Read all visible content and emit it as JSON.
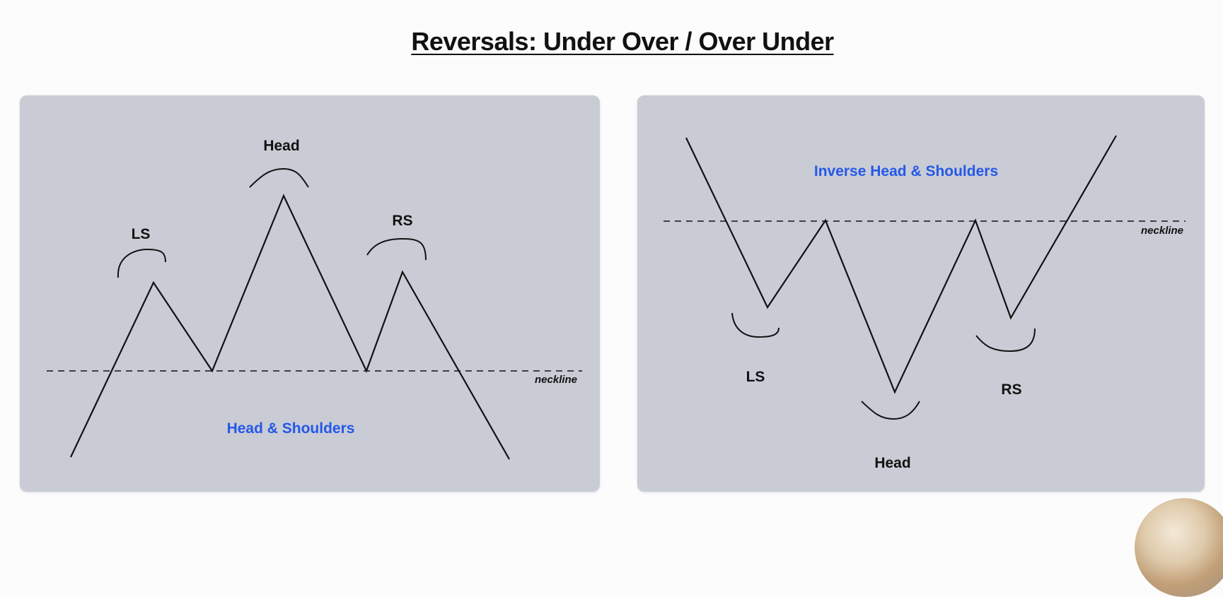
{
  "title": "Reversals: Under Over / Over Under",
  "left_panel": {
    "labels": {
      "head": "Head",
      "left_shoulder": "LS",
      "right_shoulder": "RS",
      "neckline": "neckline",
      "pattern_name": "Head & Shoulders"
    }
  },
  "right_panel": {
    "labels": {
      "pattern_name": "Inverse Head & Shoulders",
      "neckline": "neckline",
      "left_shoulder": "LS",
      "head": "Head",
      "right_shoulder": "RS"
    }
  },
  "colors": {
    "panel_background": "#c9ccd5",
    "pattern_label": "#2558e8",
    "line": "#111111"
  }
}
